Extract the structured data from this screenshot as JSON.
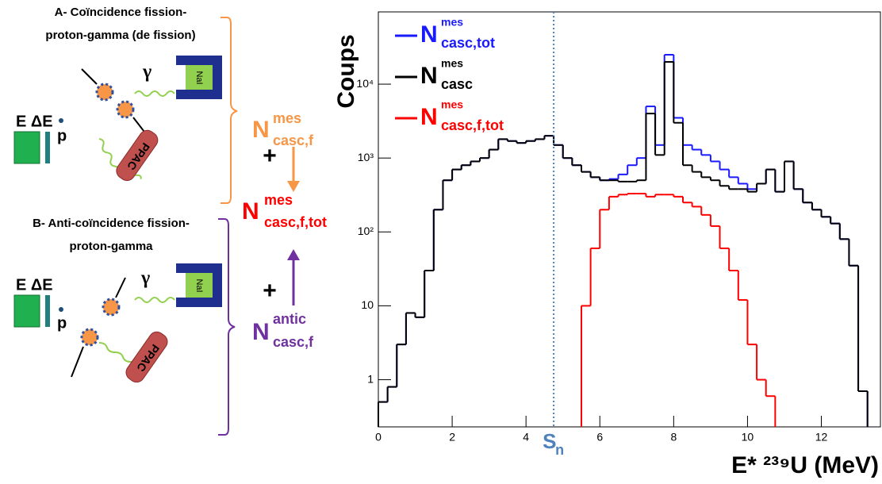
{
  "diagram": {
    "panel_a": {
      "title_lines": [
        "A- Coïncidence fission-",
        "proton-gamma (de fission)"
      ]
    },
    "panel_b": {
      "title_lines": [
        "B- Anti-coïncidence fission-",
        "proton-gamma"
      ]
    },
    "detector_labels": {
      "e_de": "E ΔE",
      "p": "p",
      "gamma": "γ",
      "nai": "NaI",
      "ppac": "PPAC"
    },
    "plus": "+",
    "n_casc_f": {
      "base": "N",
      "sup": "mes",
      "sub": "casc,f"
    },
    "n_tot": {
      "base": "N",
      "sup": "mes",
      "sub": "casc,f,tot"
    },
    "n_antic": {
      "base": "N",
      "sup": "antic",
      "sub": "casc,f"
    }
  },
  "chart_data": {
    "type": "histogram",
    "ylabel": "Coups",
    "xlabel": "E* ²³⁹U (MeV)",
    "log_y": true,
    "bins": [
      0,
      0.25,
      0.5,
      0.75,
      1,
      1.25,
      1.5,
      1.75,
      2,
      2.25,
      2.5,
      2.75,
      3,
      3.25,
      3.5,
      3.75,
      4,
      4.25,
      4.5,
      4.75,
      5,
      5.25,
      5.5,
      5.75,
      6,
      6.25,
      6.5,
      6.75,
      7,
      7.25,
      7.5,
      7.75,
      8,
      8.25,
      8.5,
      8.75,
      9,
      9.25,
      9.5,
      9.75,
      10,
      10.25,
      10.5,
      10.75,
      11,
      11.25,
      11.5,
      11.75,
      12,
      12.25,
      12.5,
      12.75,
      13,
      13.25,
      13.5
    ],
    "xlim": [
      0,
      13.6
    ],
    "ylim": [
      0.23,
      95000
    ],
    "xticks": [
      0,
      2,
      4,
      6,
      8,
      10,
      12
    ],
    "yticks": [
      1,
      10,
      {
        "value": 100,
        "label": "10²"
      },
      {
        "value": 1000,
        "label": "10³"
      },
      {
        "value": 10000,
        "label": "10⁴"
      }
    ],
    "sn_marker": {
      "x": 4.75,
      "label": "S",
      "sub": "n",
      "color": "#4f81bd"
    },
    "series": [
      {
        "name": "N",
        "sup": "mes",
        "sub": "casc,tot",
        "color": "#1a1aff",
        "values": [
          0.5,
          0.8,
          3,
          8,
          7,
          30,
          200,
          500,
          700,
          800,
          900,
          1000,
          1300,
          1800,
          1700,
          1600,
          1700,
          1800,
          2000,
          1500,
          1000,
          800,
          650,
          550,
          500,
          520,
          600,
          800,
          1000,
          5000,
          1500,
          25000,
          3500,
          1500,
          1300,
          1100,
          900,
          700,
          550,
          450,
          380,
          450,
          700,
          350,
          900,
          380,
          250,
          200,
          160,
          130,
          80,
          35,
          0.7,
          null
        ]
      },
      {
        "name": "N",
        "sup": "mes",
        "sub": "casc",
        "color": "#000000",
        "values": [
          0.5,
          0.8,
          3,
          8,
          7,
          30,
          200,
          500,
          700,
          800,
          900,
          1000,
          1300,
          1800,
          1700,
          1600,
          1700,
          1800,
          2000,
          1500,
          1000,
          800,
          650,
          550,
          500,
          500,
          480,
          480,
          500,
          4000,
          1100,
          20000,
          3000,
          800,
          650,
          550,
          500,
          420,
          380,
          380,
          350,
          450,
          700,
          350,
          900,
          380,
          250,
          200,
          160,
          130,
          80,
          35,
          0.7,
          null
        ]
      },
      {
        "name": "N",
        "sup": "mes",
        "sub": "casc,f,tot",
        "color": "#ff0000",
        "values": [
          null,
          null,
          null,
          null,
          null,
          null,
          null,
          null,
          null,
          null,
          null,
          null,
          null,
          null,
          null,
          null,
          null,
          null,
          null,
          null,
          null,
          null,
          10,
          60,
          200,
          300,
          320,
          330,
          330,
          300,
          320,
          320,
          300,
          250,
          220,
          170,
          120,
          60,
          30,
          12,
          3,
          1,
          0.6,
          null,
          null,
          null,
          null,
          null,
          null,
          null,
          null,
          null,
          null,
          null
        ]
      }
    ]
  }
}
